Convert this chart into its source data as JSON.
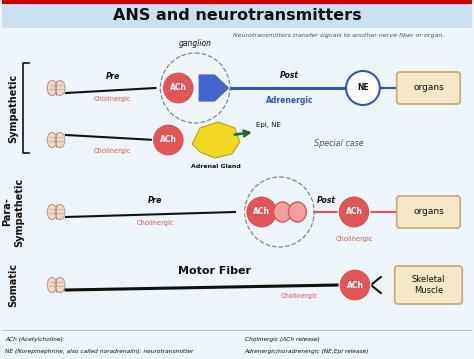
{
  "title": "ANS and neurotransmitters",
  "subtitle": "Neurotransmitters transfer signals to another nerve fiber or organ.",
  "bg_color": "#edf5fb",
  "title_bg": "#cce0f0",
  "red": "#e05555",
  "blue": "#3355bb",
  "dark": "#111111",
  "tan": "#f5e8c8",
  "tan_border": "#c8a870",
  "footer_left1": "ACh (Acetylcholine):",
  "footer_left2": "NE (Norepinephrine, also called noradrenalin): neurotransmitter",
  "footer_right1": "Cholinergic (ACh release)",
  "footer_right2": "Adrenergic/noradrenergic (NE,Epi release)",
  "label_sympathetic": "Sympathetic",
  "label_parasympathetic": "Para-\nSympathetic",
  "label_somatic": "Somatic",
  "label_pre": "Pre",
  "label_post": "Post",
  "label_cholinergic": "Cholinergic",
  "label_adrenergic": "Adrenergic",
  "label_ganglion": "ganglion",
  "label_ach": "ACh",
  "label_ne": "NE",
  "label_organs": "organs",
  "label_special": "Special case",
  "label_adrenal": "Adrenal Gland",
  "label_epi": "Epi, NE",
  "label_motor": "Motor Fiber",
  "label_skeletal": "Skeletal\nMuscle"
}
